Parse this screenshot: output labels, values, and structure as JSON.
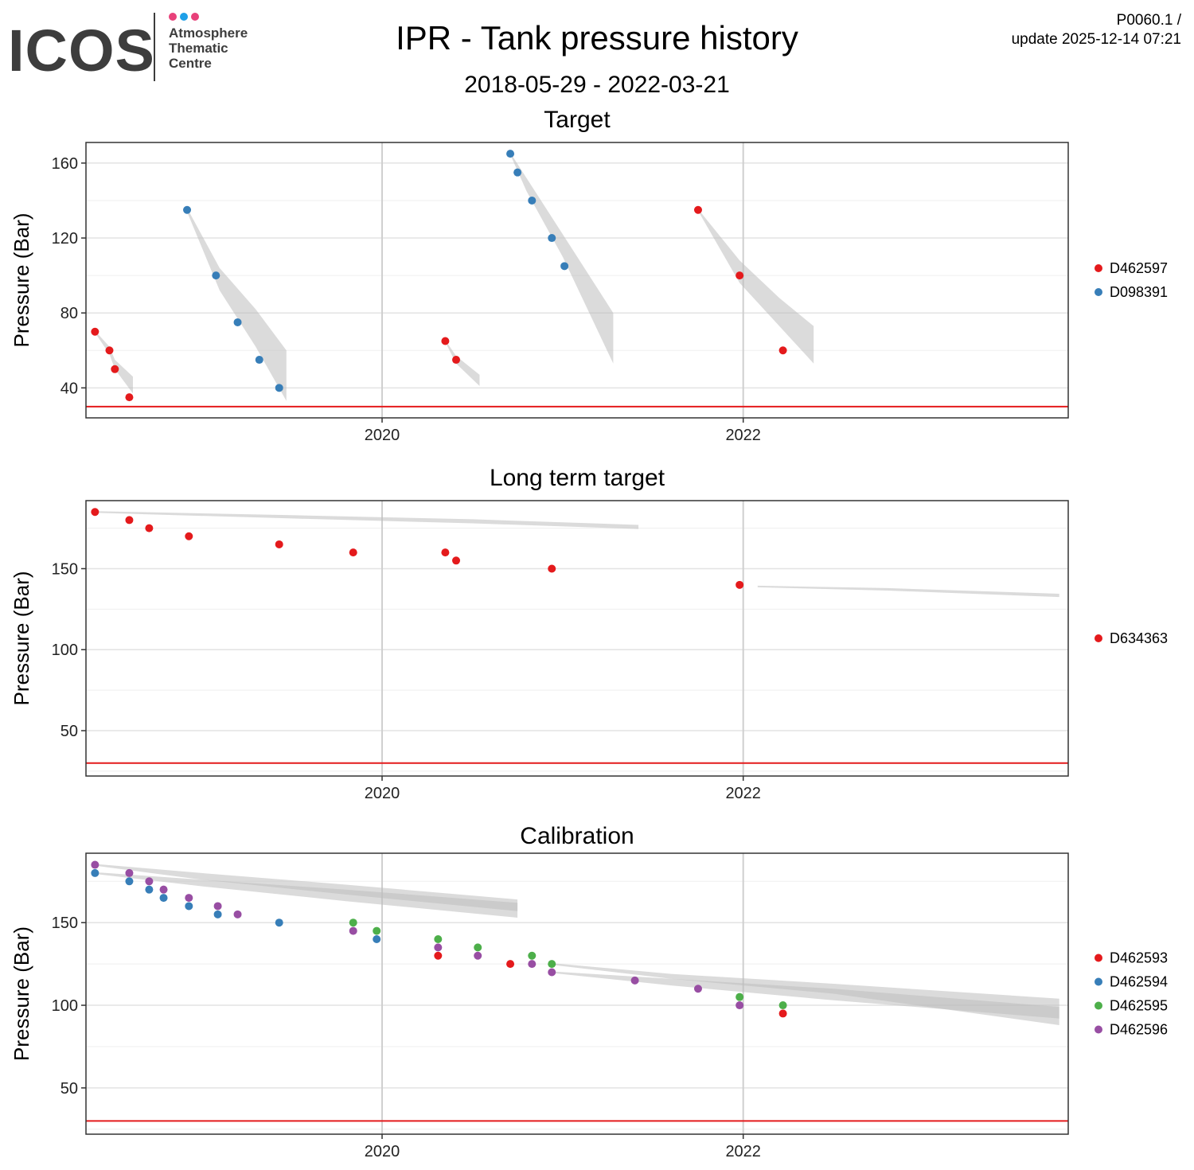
{
  "header": {
    "title": "IPR - Tank pressure history",
    "date_range": "2018-05-29 - 2022-03-21",
    "code": "P0060.1 /",
    "update": "update  2025-12-14 07:21"
  },
  "logo": {
    "word": "ICOS",
    "line1": "Atmosphere",
    "line2": "Thematic",
    "line3": "Centre",
    "dot_colors": [
      "#e8417a",
      "#1ea0e8",
      "#e8417a"
    ]
  },
  "colors": {
    "red": "#e41a1c",
    "blue": "#377eb8",
    "green": "#4daf4a",
    "purple": "#984ea3",
    "band": "#bdbdbd",
    "threshold": "#e41a1c"
  },
  "chart_data": [
    {
      "type": "scatter",
      "title": "Target",
      "ylabel": "Pressure (Bar)",
      "xlim": [
        2018.36,
        2023.8
      ],
      "ylim": [
        24,
        171
      ],
      "yticks": [
        40,
        80,
        120,
        160
      ],
      "xticks": [
        2020,
        2022
      ],
      "threshold": 30,
      "legend_position": "right",
      "series": [
        {
          "name": "D462597",
          "color": "#e41a1c",
          "x": [
            2018.41,
            2018.49,
            2018.52,
            2018.6,
            2020.35,
            2020.41,
            2021.75,
            2021.98,
            2022.22
          ],
          "y": [
            70,
            60,
            50,
            35,
            65,
            55,
            135,
            100,
            60
          ]
        },
        {
          "name": "D098391",
          "color": "#377eb8",
          "x": [
            2018.92,
            2019.08,
            2019.2,
            2019.32,
            2019.43,
            2020.71,
            2020.75,
            2020.83,
            2020.94,
            2021.01
          ],
          "y": [
            135,
            100,
            75,
            55,
            40,
            165,
            155,
            140,
            120,
            105
          ]
        }
      ],
      "bands": [
        {
          "x": [
            2018.41,
            2018.49,
            2018.52,
            2018.62
          ],
          "lower": [
            69.5,
            58,
            50,
            37
          ],
          "upper": [
            70.5,
            62,
            55,
            46
          ]
        },
        {
          "x": [
            2018.92,
            2019.1,
            2019.3,
            2019.47
          ],
          "lower": [
            134,
            92,
            62,
            33
          ],
          "upper": [
            136,
            104,
            82,
            60
          ]
        },
        {
          "x": [
            2020.35,
            2020.41,
            2020.54
          ],
          "lower": [
            64.5,
            53,
            41
          ],
          "upper": [
            65.5,
            57,
            47
          ]
        },
        {
          "x": [
            2020.71,
            2020.8,
            2021.0,
            2021.28
          ],
          "lower": [
            164.5,
            145,
            110,
            53
          ],
          "upper": [
            165.5,
            152,
            122,
            80
          ]
        },
        {
          "x": [
            2021.75,
            2021.98,
            2022.2,
            2022.39
          ],
          "lower": [
            134.5,
            96,
            73,
            53
          ],
          "upper": [
            135.5,
            108,
            88,
            73
          ]
        }
      ]
    },
    {
      "type": "scatter",
      "title": "Long term target",
      "ylabel": "Pressure (Bar)",
      "xlim": [
        2018.36,
        2023.8
      ],
      "ylim": [
        22,
        192
      ],
      "yticks": [
        50,
        100,
        150
      ],
      "xticks": [
        2020,
        2022
      ],
      "threshold": 30,
      "legend_position": "right",
      "series": [
        {
          "name": "D634363",
          "color": "#e41a1c",
          "x": [
            2018.41,
            2018.6,
            2018.71,
            2018.93,
            2019.43,
            2019.84,
            2020.35,
            2020.41,
            2020.94,
            2021.98
          ],
          "y": [
            185,
            180,
            175,
            170,
            165,
            160,
            160,
            155,
            150,
            140
          ]
        }
      ],
      "bands": [
        {
          "x": [
            2018.41,
            2019.5,
            2020.5,
            2021.42
          ],
          "lower": [
            184.5,
            181,
            178,
            174.5
          ],
          "upper": [
            185.5,
            183,
            180.5,
            177
          ]
        },
        {
          "x": [
            2022.08,
            2022.8,
            2023.75
          ],
          "lower": [
            138.5,
            136.5,
            132.5
          ],
          "upper": [
            139.5,
            138,
            134.5
          ]
        }
      ]
    },
    {
      "type": "scatter",
      "title": "Calibration",
      "ylabel": "Pressure (Bar)",
      "xlim": [
        2018.36,
        2023.8
      ],
      "ylim": [
        22,
        192
      ],
      "yticks": [
        50,
        100,
        150
      ],
      "xticks": [
        2020,
        2022
      ],
      "threshold": 30,
      "legend_position": "right",
      "series": [
        {
          "name": "D462593",
          "color": "#e41a1c",
          "x": [
            2020.31,
            2020.71,
            2022.22
          ],
          "y": [
            130,
            125,
            95
          ]
        },
        {
          "name": "D462594",
          "color": "#377eb8",
          "x": [
            2018.41,
            2018.6,
            2018.71,
            2018.79,
            2018.93,
            2019.09,
            2019.43,
            2019.97
          ],
          "y": [
            180,
            175,
            170,
            165,
            160,
            155,
            150,
            140
          ]
        },
        {
          "name": "D462595",
          "color": "#4daf4a",
          "x": [
            2019.84,
            2019.97,
            2020.31,
            2020.53,
            2020.83,
            2020.94,
            2021.98,
            2022.22
          ],
          "y": [
            150,
            145,
            140,
            135,
            130,
            125,
            105,
            100
          ]
        },
        {
          "name": "D462596",
          "color": "#984ea3",
          "x": [
            2018.41,
            2018.6,
            2018.71,
            2018.79,
            2018.93,
            2019.09,
            2019.2,
            2019.84,
            2020.31,
            2020.53,
            2020.83,
            2020.94,
            2021.4,
            2021.75,
            2021.98
          ],
          "y": [
            185,
            180,
            175,
            170,
            165,
            160,
            155,
            145,
            135,
            130,
            125,
            120,
            115,
            110,
            100
          ]
        }
      ],
      "bands": [
        {
          "x": [
            2018.41,
            2019.0,
            2019.8,
            2020.75
          ],
          "lower": [
            179.5,
            172,
            163,
            153
          ],
          "upper": [
            180.5,
            176,
            170,
            162
          ]
        },
        {
          "x": [
            2018.41,
            2019.0,
            2019.8,
            2020.75
          ],
          "lower": [
            184.5,
            176,
            167,
            157
          ],
          "upper": [
            185.5,
            180,
            173,
            164
          ]
        },
        {
          "x": [
            2020.94,
            2021.6,
            2022.5,
            2023.75
          ],
          "lower": [
            124.5,
            116,
            107,
            88
          ],
          "upper": [
            125.5,
            119,
            113,
            104
          ]
        },
        {
          "x": [
            2020.94,
            2021.6,
            2022.5,
            2023.75
          ],
          "lower": [
            119.5,
            112,
            103,
            92
          ],
          "upper": [
            120.5,
            116,
            110,
            99
          ]
        }
      ]
    }
  ]
}
